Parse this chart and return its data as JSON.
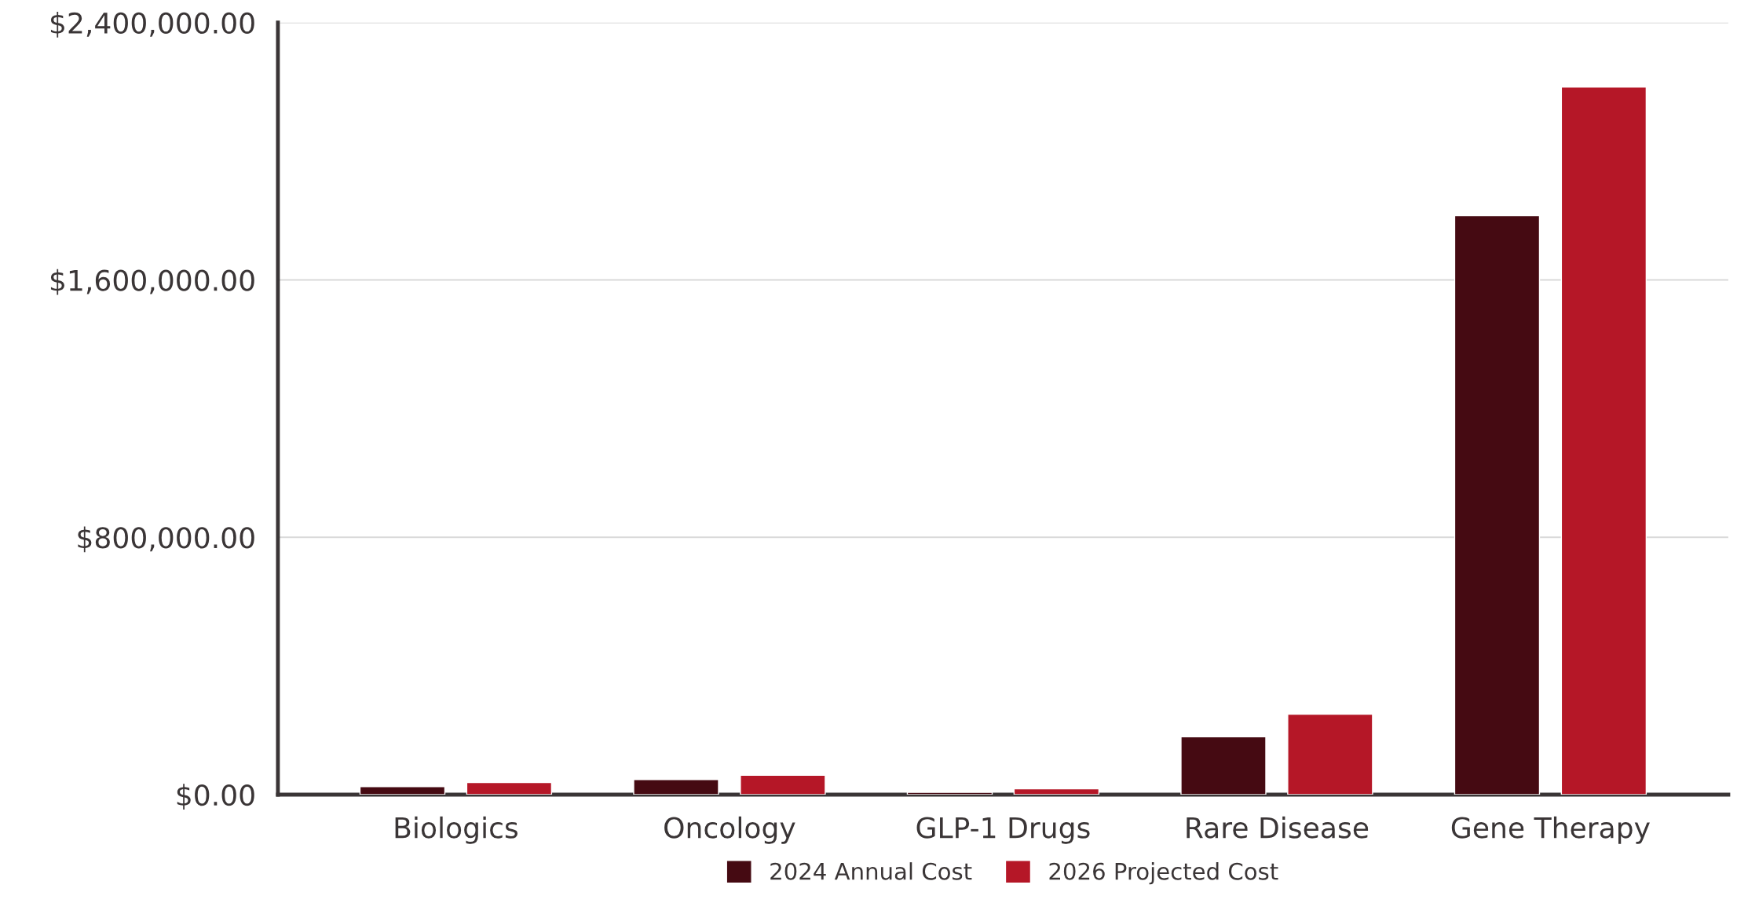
{
  "chart_data": {
    "type": "bar",
    "categories": [
      "Biologics",
      "Oncology",
      "GLP-1 Drugs",
      "Rare Disease",
      "Gene Therapy"
    ],
    "series": [
      {
        "name": "2024 Annual Cost",
        "color": "#450a12",
        "values": [
          25000,
          47000,
          7000,
          180000,
          1800000
        ]
      },
      {
        "name": "2026 Projected Cost",
        "color": "#b51727",
        "values": [
          38000,
          60000,
          18000,
          250000,
          2200000
        ]
      }
    ],
    "ylim": [
      0,
      2400000
    ],
    "yticks": [
      {
        "value": 0,
        "label": "$0.00"
      },
      {
        "value": 800000,
        "label": "$800,000.00"
      },
      {
        "value": 1600000,
        "label": "$1,600,000.00"
      },
      {
        "value": 2400000,
        "label": "$2,400,000.00"
      }
    ],
    "grid": "y",
    "legend": "bottom"
  }
}
